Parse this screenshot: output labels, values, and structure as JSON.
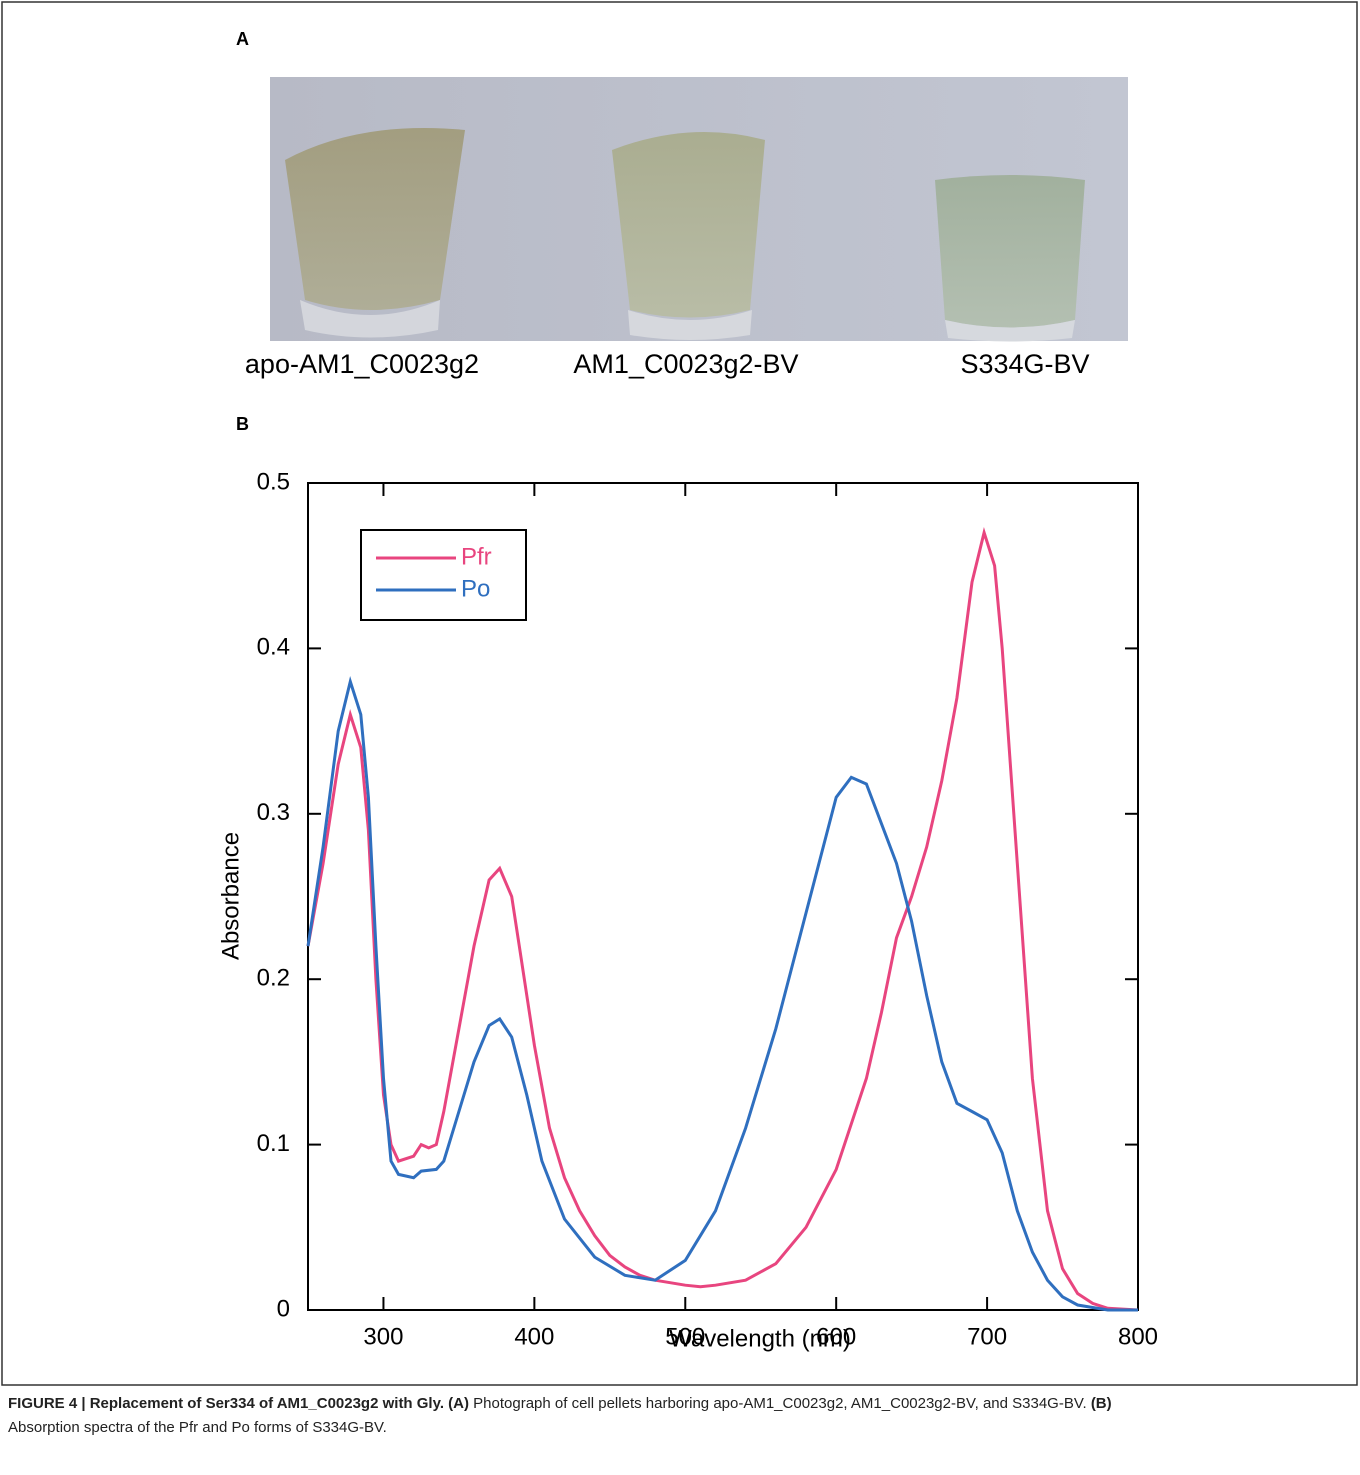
{
  "panel_a": {
    "label": "A",
    "sample_labels": [
      "apo-AM1_C0023g2",
      "AM1_C0023g2-BV",
      "S334G-BV"
    ]
  },
  "panel_b": {
    "label": "B"
  },
  "chart_data": {
    "type": "line",
    "x_label": "Wavelength (nm)",
    "y_label": "Absorbance",
    "xlim": [
      250,
      800
    ],
    "ylim": [
      0,
      0.5
    ],
    "xticks": [
      300,
      400,
      500,
      600,
      700,
      800
    ],
    "yticks": [
      0,
      0.1,
      0.2,
      0.3,
      0.4,
      0.5
    ],
    "legend": "top-left",
    "series": [
      {
        "name": "Pfr",
        "color": "#e8457f",
        "x": [
          250,
          260,
          270,
          278,
          285,
          290,
          295,
          300,
          305,
          310,
          320,
          325,
          330,
          335,
          340,
          350,
          360,
          370,
          377,
          385,
          390,
          400,
          410,
          420,
          430,
          440,
          450,
          460,
          470,
          480,
          500,
          510,
          520,
          540,
          560,
          580,
          600,
          620,
          630,
          640,
          650,
          660,
          670,
          680,
          690,
          698,
          705,
          710,
          720,
          730,
          740,
          750,
          760,
          770,
          780,
          800
        ],
        "values": [
          0.22,
          0.27,
          0.33,
          0.36,
          0.34,
          0.29,
          0.2,
          0.13,
          0.1,
          0.09,
          0.093,
          0.1,
          0.098,
          0.1,
          0.12,
          0.17,
          0.22,
          0.26,
          0.267,
          0.25,
          0.22,
          0.16,
          0.11,
          0.08,
          0.06,
          0.045,
          0.033,
          0.026,
          0.021,
          0.018,
          0.015,
          0.014,
          0.015,
          0.018,
          0.028,
          0.05,
          0.085,
          0.14,
          0.18,
          0.225,
          0.25,
          0.28,
          0.32,
          0.37,
          0.44,
          0.47,
          0.45,
          0.4,
          0.27,
          0.14,
          0.06,
          0.025,
          0.01,
          0.004,
          0.001,
          0
        ]
      },
      {
        "name": "Po",
        "color": "#2f6fbf",
        "x": [
          250,
          260,
          270,
          278,
          285,
          290,
          295,
          300,
          305,
          310,
          320,
          325,
          335,
          340,
          350,
          360,
          370,
          377,
          385,
          395,
          405,
          420,
          440,
          460,
          480,
          500,
          520,
          540,
          560,
          580,
          600,
          610,
          620,
          640,
          650,
          660,
          670,
          680,
          690,
          700,
          710,
          720,
          730,
          740,
          750,
          760,
          780,
          800
        ],
        "values": [
          0.22,
          0.28,
          0.35,
          0.38,
          0.36,
          0.31,
          0.22,
          0.14,
          0.09,
          0.082,
          0.08,
          0.084,
          0.085,
          0.09,
          0.12,
          0.15,
          0.172,
          0.176,
          0.165,
          0.13,
          0.09,
          0.055,
          0.032,
          0.021,
          0.018,
          0.03,
          0.06,
          0.11,
          0.17,
          0.24,
          0.31,
          0.322,
          0.318,
          0.27,
          0.235,
          0.19,
          0.15,
          0.125,
          0.12,
          0.115,
          0.095,
          0.06,
          0.035,
          0.018,
          0.008,
          0.003,
          0,
          0
        ]
      }
    ]
  },
  "caption": [
    {
      "text": "FIGURE 4 | Replacement of Ser334 of AM1_C0023g2 with Gly. ",
      "bold": true
    },
    {
      "text": "(A)",
      "bold": true
    },
    {
      "text": " Photograph of cell pellets harboring apo-AM1_C0023g2, AM1_C0023g2-BV, and S334G-BV. ",
      "bold": false
    },
    {
      "text": "(B)",
      "bold": true
    },
    {
      "text": " Absorption spectra of the Pfr and Po forms of S334G-BV.",
      "bold": false
    }
  ]
}
